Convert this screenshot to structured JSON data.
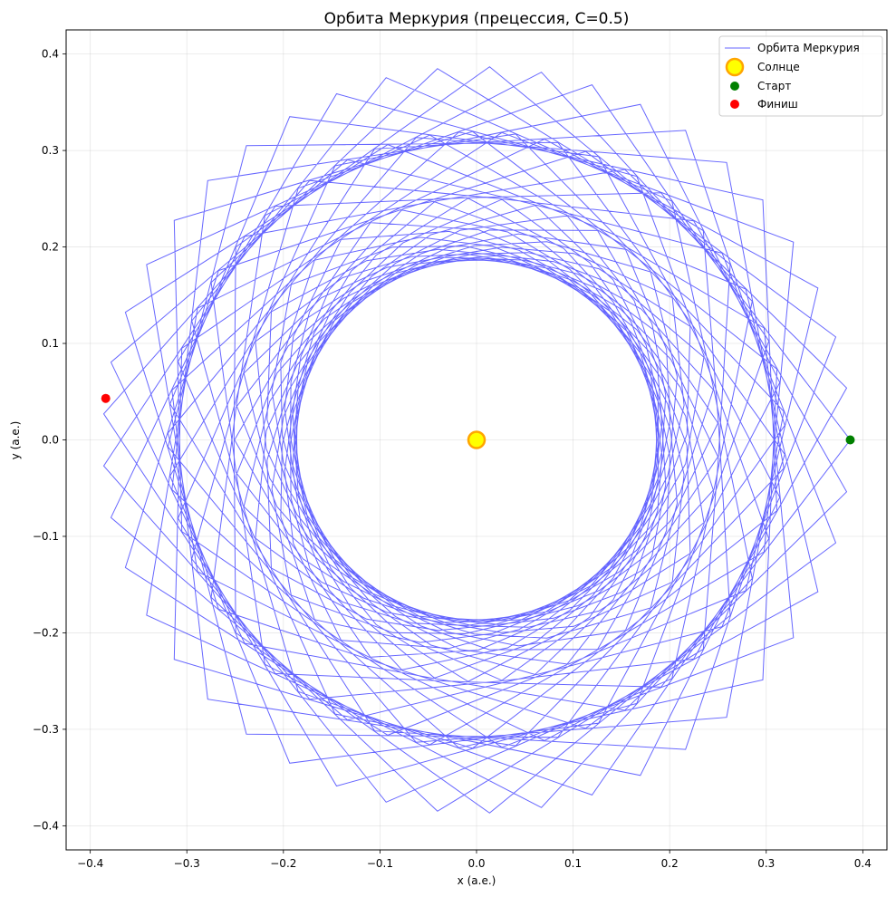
{
  "chart_data": {
    "type": "line",
    "title": "Орбита Меркурия (прецессия, C=0.5)",
    "xlabel": "x (a.e.)",
    "ylabel": "y (a.e.)",
    "xlim": [
      -0.425,
      0.425
    ],
    "ylim": [
      -0.425,
      0.425
    ],
    "grid": true,
    "legend_position": "top-right",
    "xticks": [
      -0.4,
      -0.3,
      -0.2,
      -0.1,
      0.0,
      0.1,
      0.2,
      0.3,
      0.4
    ],
    "yticks": [
      -0.4,
      -0.3,
      -0.2,
      -0.1,
      0.0,
      0.1,
      0.2,
      0.3,
      0.4
    ],
    "xtick_labels": [
      "−0.4",
      "−0.3",
      "−0.2",
      "−0.1",
      "0.0",
      "0.1",
      "0.2",
      "0.3",
      "0.4"
    ],
    "ytick_labels": [
      "−0.4",
      "−0.3",
      "−0.2",
      "−0.1",
      "0.0",
      "0.1",
      "0.2",
      "0.3",
      "0.4"
    ],
    "orbit": {
      "perihelion": 0.187,
      "aphelion": 0.387,
      "start_angle_deg": 0,
      "revolutions": 46,
      "precession_deg_per_orbit": 8.0,
      "color": "#0000ff"
    },
    "series": [
      {
        "name": "Орбита Меркурия",
        "kind": "line",
        "color": "#5a5af0"
      },
      {
        "name": "Солнце",
        "kind": "point",
        "x": 0.0,
        "y": 0.0,
        "color": "#ffff00",
        "edge": "#ffa500"
      },
      {
        "name": "Старт",
        "kind": "point",
        "x": 0.387,
        "y": 0.0,
        "color": "#008000"
      },
      {
        "name": "Финиш",
        "kind": "point",
        "x": -0.384,
        "y": 0.043,
        "color": "#ff0000"
      }
    ]
  }
}
